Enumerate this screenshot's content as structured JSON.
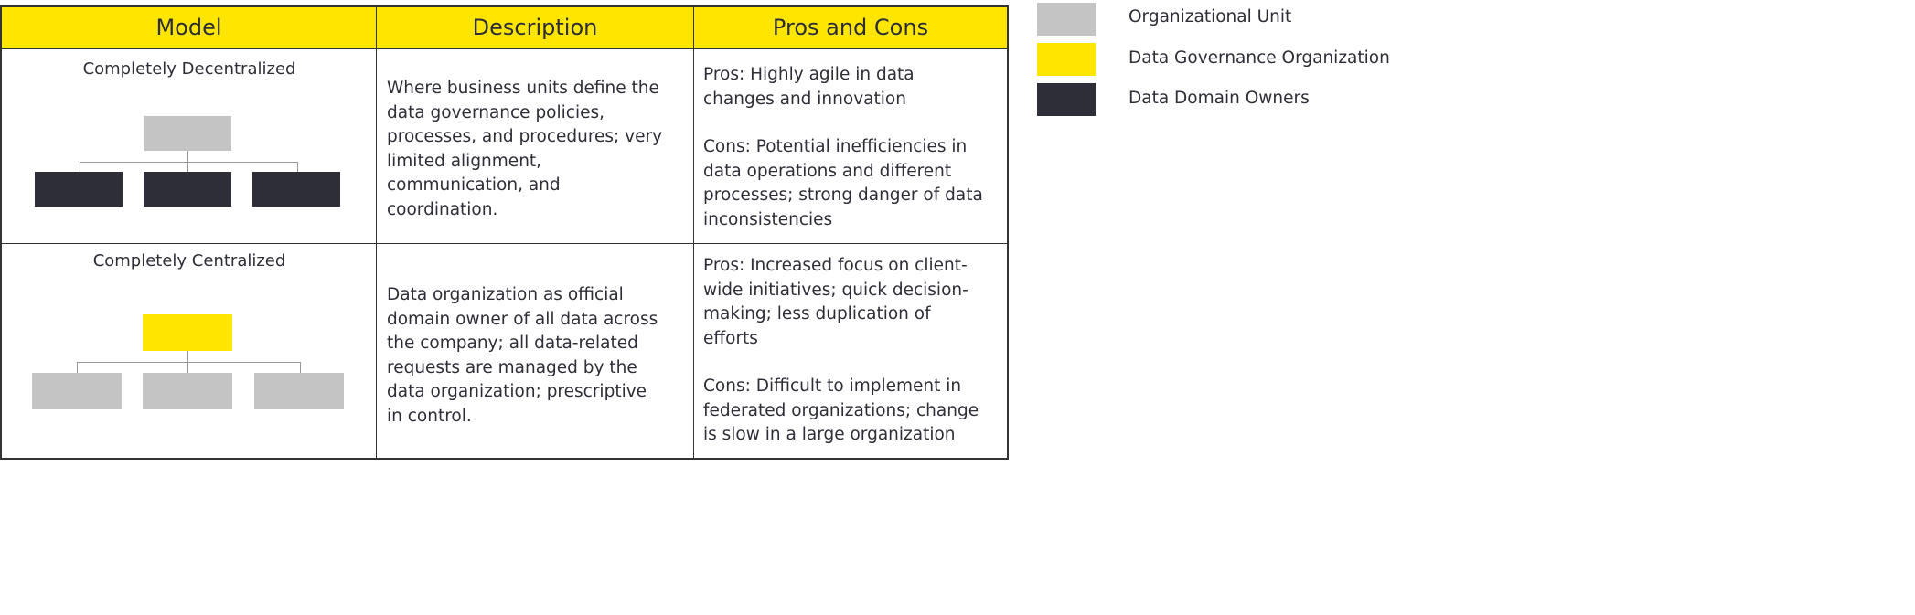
{
  "table": {
    "headers": {
      "model": "Model",
      "description": "Description",
      "pros_cons": "Pros and Cons"
    },
    "rows": [
      {
        "model": "Completely Decentralized",
        "description": "Where business units define the\ndata governance policies,\nprocesses, and procedures; very\nlimited alignment,\ncommunication, and\ncoordination.",
        "pros": "Pros: Highly agile in data\nchanges and innovation",
        "cons": "Cons: Potential inefficiencies in\ndata operations and different\nprocesses; strong danger of data\ninconsistencies"
      },
      {
        "model": "Completely Centralized",
        "description": "Data organization as official\ndomain owner of all data across\nthe company; all data-related\nrequests are managed by the\ndata organization; prescriptive\nin control.",
        "pros": "Pros: Increased focus on client-\nwide initiatives; quick decision-\nmaking; less duplication of\nefforts",
        "cons": "Cons: Difficult to implement in\nfederated organizations; change\nis slow in a large organization"
      }
    ]
  },
  "legend": [
    {
      "label": "Organizational Unit",
      "color": "#c4c4c4"
    },
    {
      "label": "Data Governance Organization",
      "color": "#ffe600"
    },
    {
      "label": "Data Domain Owners",
      "color": "#2e2e38"
    }
  ],
  "colors": {
    "header_bg": "#ffe600",
    "border": "#333333",
    "connector": "#999999"
  }
}
